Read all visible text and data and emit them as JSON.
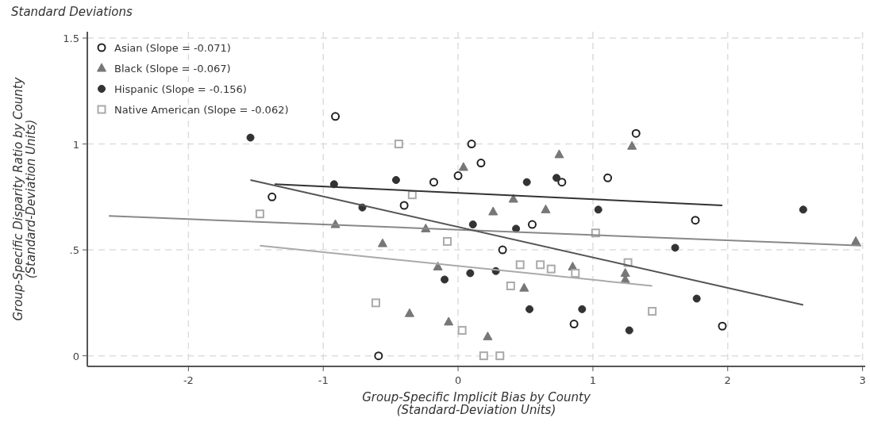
{
  "chart_data": {
    "type": "scatter",
    "subtitle": "Standard Deviations",
    "xlabel": "Group-Specific Implicit Bias by County\n(Standard-Deviation Units)",
    "ylabel": "Group-Specific Disparity Ratio by County\n(Standard-Deviation Units)",
    "xlim": [
      -2.75,
      3.02
    ],
    "ylim": [
      -0.05,
      1.53
    ],
    "xticks": [
      -2,
      -1,
      0,
      1,
      2,
      3
    ],
    "yticks": [
      0,
      {
        "value": 0.5,
        "label": ".5"
      },
      1,
      1.5
    ],
    "grid": true,
    "legend": "top left",
    "series": [
      {
        "name": "Asian (Slope = -0.071)",
        "color": "#222222",
        "marker": "circle",
        "x": [
          -1.38,
          -0.91,
          -0.59,
          -0.4,
          -0.18,
          0,
          0.1,
          0.17,
          0.33,
          0.55,
          0.77,
          0.86,
          1.11,
          1.32,
          1.76,
          1.96
        ],
        "values": [
          0.75,
          1.13,
          0.0,
          0.71,
          0.82,
          0.85,
          1.0,
          0.91,
          0.5,
          0.62,
          0.82,
          0.15,
          0.84,
          1.05,
          0.64,
          0.14
        ]
      },
      {
        "name": "Black (Slope = -0.067)",
        "color": "#777777",
        "marker": "triangle",
        "x": [
          -0.91,
          -0.56,
          -0.36,
          -0.24,
          -0.15,
          -0.07,
          0.04,
          0.22,
          0.26,
          0.41,
          0.49,
          0.65,
          0.75,
          0.85,
          1.24,
          1.24,
          1.29,
          2.95
        ],
        "values": [
          0.62,
          0.53,
          0.2,
          0.6,
          0.42,
          0.16,
          0.89,
          0.09,
          0.68,
          0.74,
          0.32,
          0.69,
          0.95,
          0.42,
          0.39,
          0.36,
          0.99,
          0.54
        ]
      },
      {
        "name": "Hispanic (Slope = -0.156)",
        "color": "#333333",
        "marker": "circle",
        "x": [
          -1.54,
          -0.92,
          -0.71,
          -0.46,
          -0.1,
          0.09,
          0.11,
          0.28,
          0.43,
          0.51,
          0.53,
          0.73,
          0.92,
          1.04,
          1.27,
          1.61,
          1.77,
          2.56
        ],
        "values": [
          1.03,
          0.81,
          0.7,
          0.83,
          0.36,
          0.39,
          0.62,
          0.4,
          0.6,
          0.82,
          0.22,
          0.84,
          0.22,
          0.69,
          0.12,
          0.51,
          0.27,
          0.69
        ]
      },
      {
        "name": "Native American (Slope = -0.062)",
        "color": "#aaaaaa",
        "marker": "square",
        "x": [
          -1.47,
          -0.61,
          -0.44,
          -0.34,
          -0.08,
          0.03,
          0.19,
          0.31,
          0.39,
          0.46,
          0.61,
          0.69,
          0.87,
          1.02,
          1.26,
          1.44
        ],
        "values": [
          0.67,
          0.25,
          1.0,
          0.76,
          0.54,
          0.12,
          0.0,
          0.0,
          0.33,
          0.43,
          0.43,
          0.41,
          0.39,
          0.58,
          0.44,
          0.21
        ]
      },
      {
        "type": "line",
        "color": "#333333",
        "x": [
          -1.36,
          1.96
        ],
        "values": [
          0.81,
          0.71
        ]
      },
      {
        "type": "line",
        "color": "#888888",
        "x": [
          -2.59,
          2.99
        ],
        "values": [
          0.66,
          0.52
        ]
      },
      {
        "type": "line",
        "color": "#555555",
        "x": [
          -1.54,
          2.56
        ],
        "values": [
          0.83,
          0.24
        ]
      },
      {
        "type": "line",
        "color": "#aaaaaa",
        "x": [
          -1.47,
          1.44
        ],
        "values": [
          0.52,
          0.33
        ]
      }
    ]
  }
}
